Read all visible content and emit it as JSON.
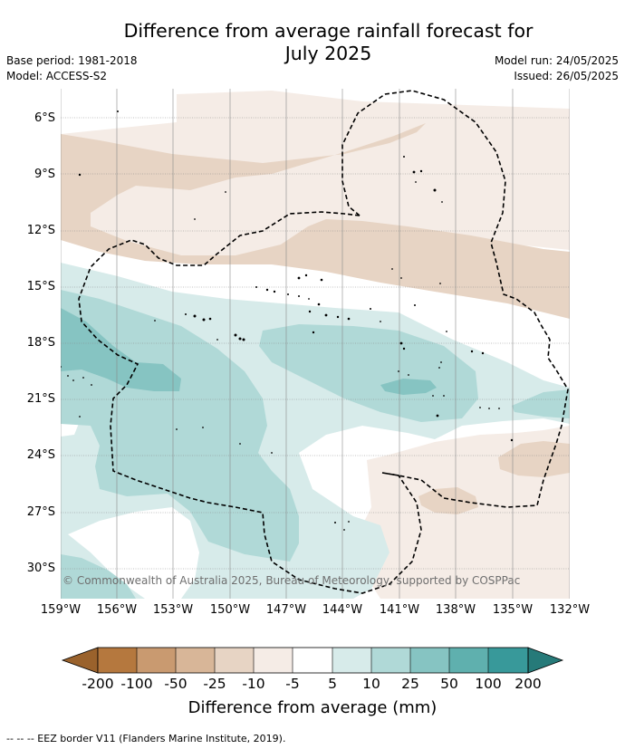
{
  "title_line1": "Difference from average rainfall forecast for",
  "title_line2": "July 2025",
  "base_period": "Base period: 1981-2018",
  "model": "Model: ACCESS-S2",
  "model_run": "Model run: 24/05/2025",
  "issued": "Issued: 26/05/2025",
  "lat_labels": [
    "6°S",
    "9°S",
    "12°S",
    "15°S",
    "18°S",
    "21°S",
    "24°S",
    "27°S",
    "30°S"
  ],
  "lon_labels": [
    "159°W",
    "156°W",
    "153°W",
    "150°W",
    "147°W",
    "144°W",
    "141°W",
    "138°W",
    "135°W",
    "132°W"
  ],
  "colorbar": {
    "title": "Difference from average (mm)",
    "tick_labels": [
      "-200",
      "-100",
      "-50",
      "-25",
      "-10",
      "-5",
      "5",
      "10",
      "25",
      "50",
      "100",
      "200"
    ],
    "colors": [
      "#9a622c",
      "#b5783e",
      "#c99a70",
      "#d8b698",
      "#e7d4c4",
      "#f5ece6",
      "#ffffff",
      "#d7ebea",
      "#b0d9d7",
      "#86c4c2",
      "#5fb0ae",
      "#38999a",
      "#267a79"
    ]
  },
  "copyright": "© Commonwealth of Australia 2025, Bureau of Meteorology, supported by COSPPac",
  "footer": "-- -- -- EEZ border V11 (Flanders Marine Institute, 2019)."
}
